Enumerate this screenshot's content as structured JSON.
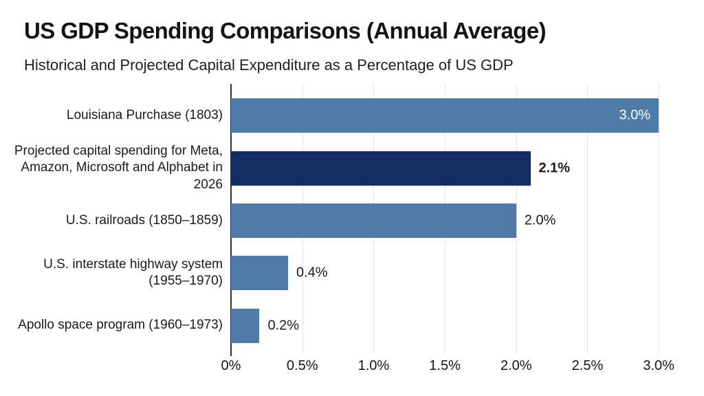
{
  "colors": {
    "background": "#ffffff",
    "bar_default": "#4e7ba7",
    "bar_highlight": "#132e62",
    "axis_line": "#333333",
    "gridline": "#e3e3e3",
    "text": "#1a1a1a",
    "value_label_inside": "#ffffff"
  },
  "chart_data": {
    "type": "bar",
    "orientation": "horizontal",
    "title": "US GDP Spending Comparisons (Annual Average)",
    "subtitle": "Historical and Projected Capital Expenditure as a Percentage of US GDP",
    "xlabel": "",
    "ylabel": "",
    "xlim": [
      0,
      3.25
    ],
    "grid": "vertical-only",
    "legend": "none",
    "x_ticks": [
      {
        "value": 0,
        "label": "0%"
      },
      {
        "value": 0.5,
        "label": "0.5%"
      },
      {
        "value": 1.0,
        "label": "1.0%"
      },
      {
        "value": 1.5,
        "label": "1.5%"
      },
      {
        "value": 2.0,
        "label": "2.0%"
      },
      {
        "value": 2.5,
        "label": "2.5%"
      },
      {
        "value": 3.0,
        "label": "3.0%"
      }
    ],
    "bars": [
      {
        "category": "Louisiana Purchase (1803)",
        "value": 3.0,
        "value_label": "3.0%",
        "color": "#4e7ba7",
        "value_label_placement": "inside",
        "value_label_color": "#ffffff",
        "value_label_bold": false
      },
      {
        "category": "Projected capital spending for Meta, Amazon, Microsoft and Alphabet in 2026",
        "value": 2.1,
        "value_label": "2.1%",
        "color": "#132e62",
        "value_label_placement": "outside",
        "value_label_color": "#1a1a1a",
        "value_label_bold": true
      },
      {
        "category": "U.S. railroads (1850–1859)",
        "value": 2.0,
        "value_label": "2.0%",
        "color": "#4e7ba7",
        "value_label_placement": "outside",
        "value_label_color": "#1a1a1a",
        "value_label_bold": false
      },
      {
        "category": "U.S. interstate highway system (1955–1970)",
        "value": 0.4,
        "value_label": "0.4%",
        "color": "#4e7ba7",
        "value_label_placement": "outside",
        "value_label_color": "#1a1a1a",
        "value_label_bold": false
      },
      {
        "category": "Apollo space program (1960–1973)",
        "value": 0.2,
        "value_label": "0.2%",
        "color": "#4e7ba7",
        "value_label_placement": "outside",
        "value_label_color": "#1a1a1a",
        "value_label_bold": false
      }
    ]
  }
}
